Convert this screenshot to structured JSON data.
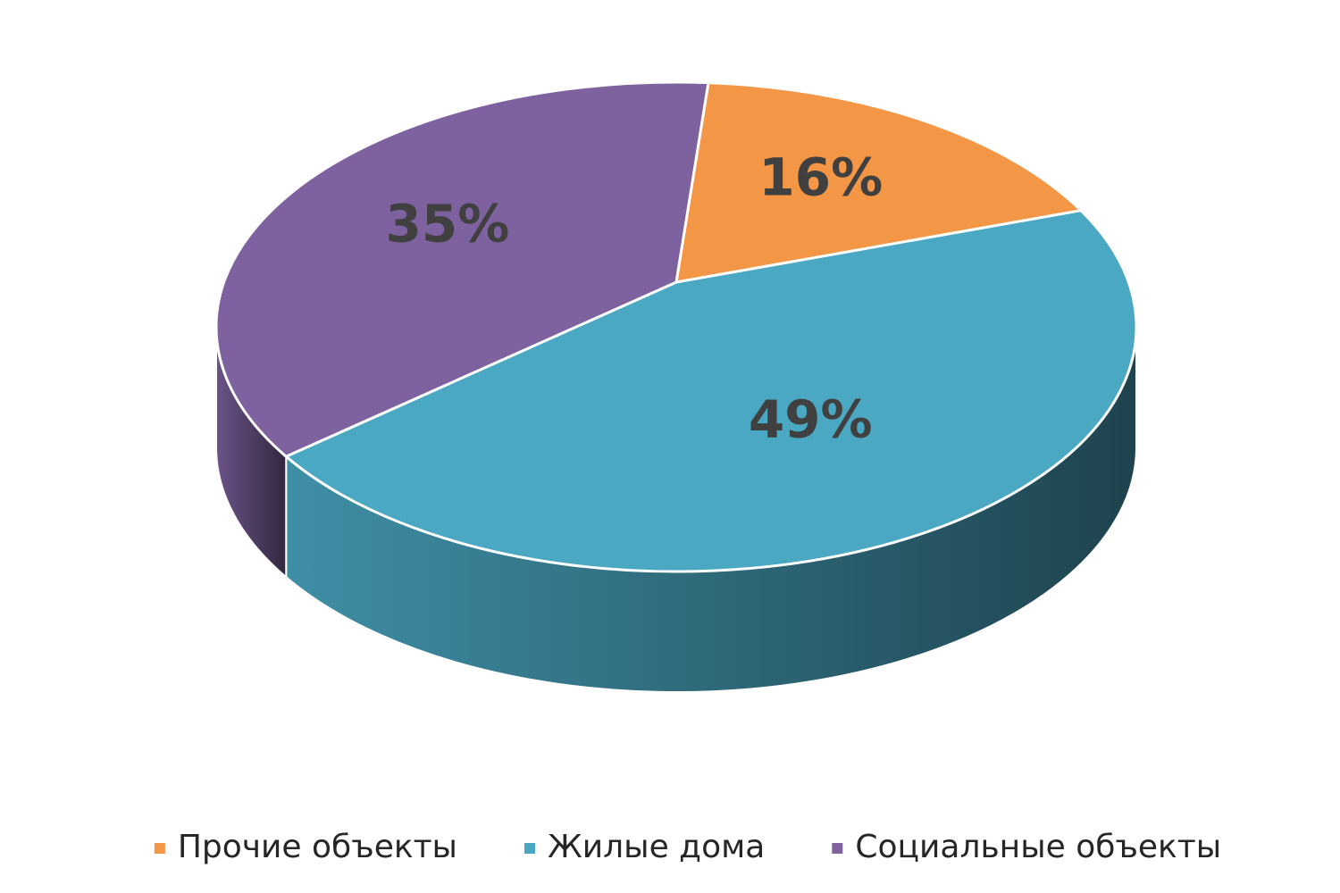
{
  "chart_data": {
    "type": "pie",
    "categories": [
      "Прочие объекты",
      "Жилые дома",
      "Социальные объекты"
    ],
    "values": [
      16,
      49,
      35
    ],
    "value_labels": [
      "16%",
      "49%",
      "35%"
    ],
    "colors": [
      "#f39646",
      "#4aa8c3",
      "#7e62a0"
    ],
    "legend": "bottom"
  }
}
